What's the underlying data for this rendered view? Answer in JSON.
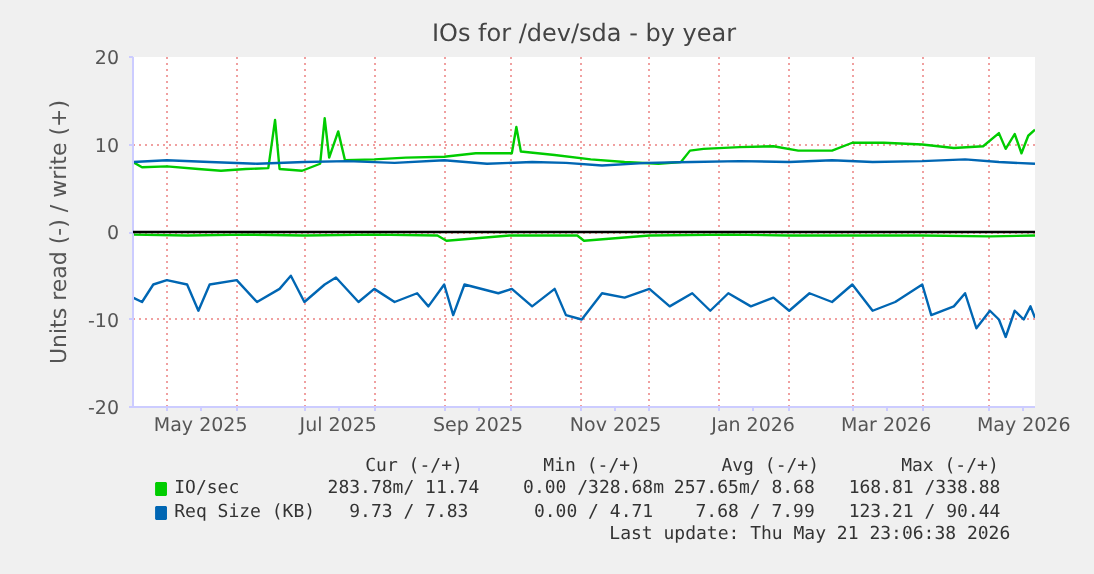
{
  "chart_data": {
    "type": "line",
    "title": "IOs for /dev/sda - by year",
    "ylabel": "Units read (-) / write (+)",
    "xlim": [
      "2025-04-16",
      "2026-05-21"
    ],
    "ylim": [
      -20,
      20
    ],
    "yticks": [
      -20,
      -10,
      0,
      10,
      20
    ],
    "xticks": [
      {
        "value": "2025-05-01",
        "label": null
      },
      {
        "value": "2025-06-01",
        "label": null
      },
      {
        "value": "2025-07-01",
        "label": null
      },
      {
        "value": "2025-08-01",
        "label": null
      },
      {
        "value": "2025-09-01",
        "label": null
      },
      {
        "value": "2025-10-01",
        "label": null
      },
      {
        "value": "2025-11-01",
        "label": null
      },
      {
        "value": "2025-12-01",
        "label": null
      },
      {
        "value": "2026-01-01",
        "label": null
      },
      {
        "value": "2026-02-01",
        "label": null
      },
      {
        "value": "2026-03-01",
        "label": null
      },
      {
        "value": "2026-04-01",
        "label": null
      },
      {
        "value": "2026-05-01",
        "label": null
      },
      {
        "value": "2025-05-16",
        "label": "May 2025"
      },
      {
        "value": "2025-07-16",
        "label": "Jul 2025"
      },
      {
        "value": "2025-09-16",
        "label": "Sep 2025"
      },
      {
        "value": "2025-11-16",
        "label": "Nov 2025"
      },
      {
        "value": "2026-01-16",
        "label": "Jan 2026"
      },
      {
        "value": "2026-03-16",
        "label": "Mar 2026"
      },
      {
        "value": "2026-05-16",
        "label": "May 2026"
      }
    ],
    "grid": true,
    "legend": "bottom",
    "marker": "none",
    "line_style": "solid",
    "ref_lines": [
      {
        "axis": "y",
        "value": 0,
        "color": "#000000"
      }
    ],
    "series": [
      {
        "name": "IO/sec",
        "color": "#00cc00",
        "x": [
          "2025-04-16",
          "2025-04-20",
          "2025-05-01",
          "2025-05-15",
          "2025-05-25",
          "2025-06-05",
          "2025-06-15",
          "2025-06-18",
          "2025-06-20",
          "2025-06-30",
          "2025-07-08",
          "2025-07-10",
          "2025-07-12",
          "2025-07-16",
          "2025-07-19",
          "2025-08-01",
          "2025-08-15",
          "2025-09-01",
          "2025-09-15",
          "2025-10-01",
          "2025-10-03",
          "2025-10-05",
          "2025-10-20",
          "2025-11-05",
          "2025-11-20",
          "2025-12-05",
          "2025-12-15",
          "2025-12-19",
          "2025-12-25",
          "2026-01-10",
          "2026-01-25",
          "2026-02-05",
          "2026-02-20",
          "2026-03-01",
          "2026-03-15",
          "2026-04-01",
          "2026-04-15",
          "2026-04-28",
          "2026-05-05",
          "2026-05-08",
          "2026-05-12",
          "2026-05-15",
          "2026-05-18",
          "2026-05-21"
        ],
        "values": [
          8.0,
          7.4,
          7.5,
          7.2,
          7.0,
          7.2,
          7.3,
          12.8,
          7.2,
          7.0,
          7.8,
          13.0,
          8.5,
          11.5,
          8.2,
          8.3,
          8.5,
          8.6,
          9.0,
          9.0,
          12.0,
          9.2,
          8.8,
          8.3,
          8.0,
          7.8,
          8.0,
          9.3,
          9.5,
          9.7,
          9.8,
          9.3,
          9.3,
          10.2,
          10.2,
          10.0,
          9.6,
          9.8,
          11.3,
          9.5,
          11.2,
          9.0,
          11.0,
          11.7
        ]
      },
      {
        "name": "Req Size (KB)",
        "color": "#0066b3",
        "x": [
          "2025-04-16",
          "2025-05-01",
          "2025-05-20",
          "2025-06-10",
          "2025-07-01",
          "2025-07-20",
          "2025-08-10",
          "2025-09-01",
          "2025-09-20",
          "2025-10-10",
          "2025-10-25",
          "2025-11-10",
          "2025-11-30",
          "2025-12-20",
          "2026-01-10",
          "2026-02-01",
          "2026-02-20",
          "2026-03-10",
          "2026-04-01",
          "2026-04-20",
          "2026-05-05",
          "2026-05-21"
        ],
        "values": [
          8.0,
          8.2,
          8.0,
          7.8,
          8.0,
          8.1,
          7.9,
          8.2,
          7.8,
          8.0,
          7.9,
          7.6,
          7.9,
          8.0,
          8.1,
          8.0,
          8.2,
          8.0,
          8.1,
          8.3,
          8.0,
          7.8
        ]
      },
      {
        "color": "#00cc00",
        "x": [
          "2025-04-16",
          "2025-05-10",
          "2025-06-05",
          "2025-07-01",
          "2025-08-01",
          "2025-08-29",
          "2025-09-02",
          "2025-09-30",
          "2025-10-30",
          "2025-11-02",
          "2025-12-01",
          "2026-01-05",
          "2026-02-01",
          "2026-03-01",
          "2026-04-01",
          "2026-05-01",
          "2026-05-21"
        ],
        "values": [
          -0.3,
          -0.4,
          -0.3,
          -0.4,
          -0.3,
          -0.4,
          -1.0,
          -0.4,
          -0.4,
          -1.0,
          -0.4,
          -0.3,
          -0.4,
          -0.4,
          -0.4,
          -0.5,
          -0.4
        ]
      },
      {
        "color": "#0066b3",
        "x": [
          "2025-04-16",
          "2025-04-20",
          "2025-04-25",
          "2025-05-01",
          "2025-05-10",
          "2025-05-15",
          "2025-05-20",
          "2025-06-01",
          "2025-06-10",
          "2025-06-20",
          "2025-06-25",
          "2025-07-01",
          "2025-07-10",
          "2025-07-15",
          "2025-07-25",
          "2025-08-01",
          "2025-08-10",
          "2025-08-20",
          "2025-08-25",
          "2025-09-01",
          "2025-09-05",
          "2025-09-10",
          "2025-09-25",
          "2025-10-01",
          "2025-10-10",
          "2025-10-20",
          "2025-10-25",
          "2025-11-01",
          "2025-11-10",
          "2025-11-20",
          "2025-12-01",
          "2025-12-10",
          "2025-12-20",
          "2025-12-28",
          "2026-01-05",
          "2026-01-15",
          "2026-01-25",
          "2026-02-01",
          "2026-02-10",
          "2026-02-20",
          "2026-03-01",
          "2026-03-10",
          "2026-03-20",
          "2026-04-01",
          "2026-04-05",
          "2026-04-15",
          "2026-04-20",
          "2026-04-25",
          "2026-05-01",
          "2026-05-05",
          "2026-05-08",
          "2026-05-12",
          "2026-05-16",
          "2026-05-19",
          "2026-05-21"
        ],
        "values": [
          -7.5,
          -8,
          -6,
          -5.5,
          -6,
          -9,
          -6,
          -5.5,
          -8,
          -6.5,
          -5,
          -8,
          -6,
          -5.2,
          -8,
          -6.5,
          -8,
          -7,
          -8.5,
          -6,
          -9.5,
          -6,
          -7,
          -6.5,
          -8.5,
          -6.5,
          -9.5,
          -10,
          -7,
          -7.5,
          -6.5,
          -8.5,
          -7,
          -9,
          -7,
          -8.5,
          -7.5,
          -9,
          -7,
          -8,
          -6,
          -9,
          -8,
          -6,
          -9.5,
          -8.5,
          -7,
          -11,
          -9,
          -10,
          -12,
          -9,
          -10,
          -8.5,
          -9.8
        ]
      }
    ],
    "annotations": [
      "Cur (-/+)",
      "Min (-/+)",
      "Avg (-/+)",
      "Max (-/+)",
      "283.78m/ 11.74",
      "0.00 /328.68m",
      "257.65m/  8.68",
      "168.81 /338.88",
      "9.73 /  7.83",
      "0.00 /  4.71",
      "7.68 /  7.99",
      "123.21 / 90.44",
      "Last update: Thu May 21 23:06:38 2026"
    ]
  }
}
